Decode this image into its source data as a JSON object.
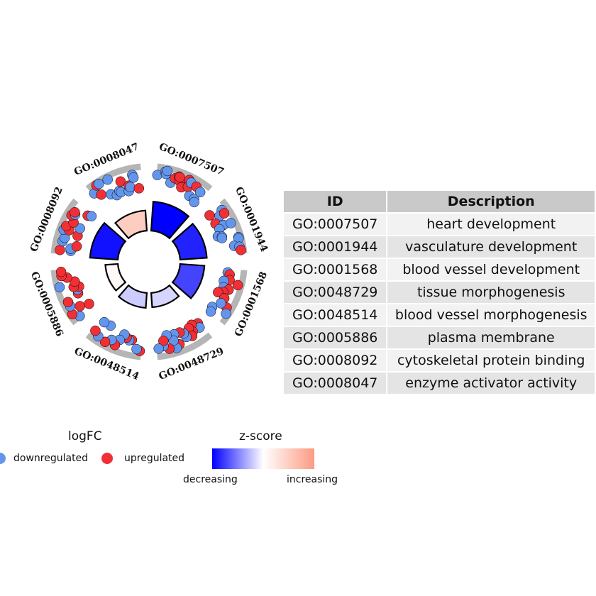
{
  "chart_data": {
    "type": "circular-go-plot",
    "terms": [
      {
        "id": "GO:0007507",
        "description": "heart development",
        "zscore": -3.0,
        "count": 18
      },
      {
        "id": "GO:0001944",
        "description": "vasculature development",
        "zscore": -2.6,
        "count": 16
      },
      {
        "id": "GO:0001568",
        "description": "blood vessel development",
        "zscore": -2.2,
        "count": 15
      },
      {
        "id": "GO:0048729",
        "description": "tissue morphogenesis",
        "zscore": -0.5,
        "count": 18
      },
      {
        "id": "GO:0048514",
        "description": "blood vessel morphogenesis",
        "zscore": -0.6,
        "count": 14
      },
      {
        "id": "GO:0005886",
        "description": "plasma membrane",
        "zscore": 0.2,
        "count": 15
      },
      {
        "id": "GO:0008092",
        "description": "cytoskeletal protein binding",
        "zscore": -2.8,
        "count": 17
      },
      {
        "id": "GO:0008047",
        "description": "enzyme activator activity",
        "zscore": 1.5,
        "count": 16
      }
    ],
    "legend": {
      "logfc": {
        "title": "logFC",
        "items": [
          {
            "label": "downregulated",
            "color": "#6495ed"
          },
          {
            "label": "upregulated",
            "color": "#f03035"
          }
        ]
      },
      "zscore": {
        "title": "z-score",
        "low_label": "decreasing",
        "high_label": "increasing",
        "low_color": "#0000ff",
        "mid_color": "#ffffff",
        "high_color": "#fc9b83"
      }
    }
  },
  "table": {
    "headers": {
      "id": "ID",
      "description": "Description"
    }
  }
}
